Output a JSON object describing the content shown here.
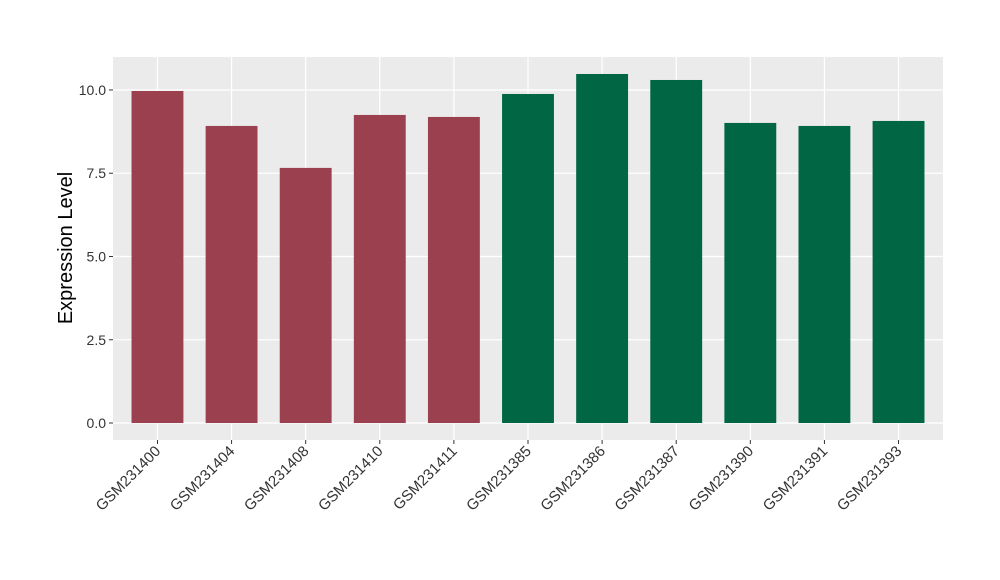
{
  "chart_data": {
    "type": "bar",
    "y_label": "Expression Level",
    "categories": [
      "GSM231400",
      "GSM231404",
      "GSM231408",
      "GSM231410",
      "GSM231411",
      "GSM231385",
      "GSM231386",
      "GSM231387",
      "GSM231390",
      "GSM231391",
      "GSM231393"
    ],
    "values": [
      9.97,
      8.92,
      7.66,
      9.25,
      9.19,
      9.88,
      10.48,
      10.3,
      9.01,
      8.92,
      9.07
    ],
    "colors": [
      "#9a404f",
      "#9a404f",
      "#9a404f",
      "#9a404f",
      "#9a404f",
      "#006644",
      "#006644",
      "#006644",
      "#006644",
      "#006644",
      "#006644"
    ],
    "ylim": [
      -0.51,
      10.99
    ],
    "yticks": [
      {
        "value": 0,
        "label": "0.0"
      },
      {
        "value": 2.5,
        "label": "2.5"
      },
      {
        "value": 5,
        "label": "5.0"
      },
      {
        "value": 7.5,
        "label": "7.5"
      },
      {
        "value": 10,
        "label": "10.0"
      }
    ],
    "grid": true
  }
}
